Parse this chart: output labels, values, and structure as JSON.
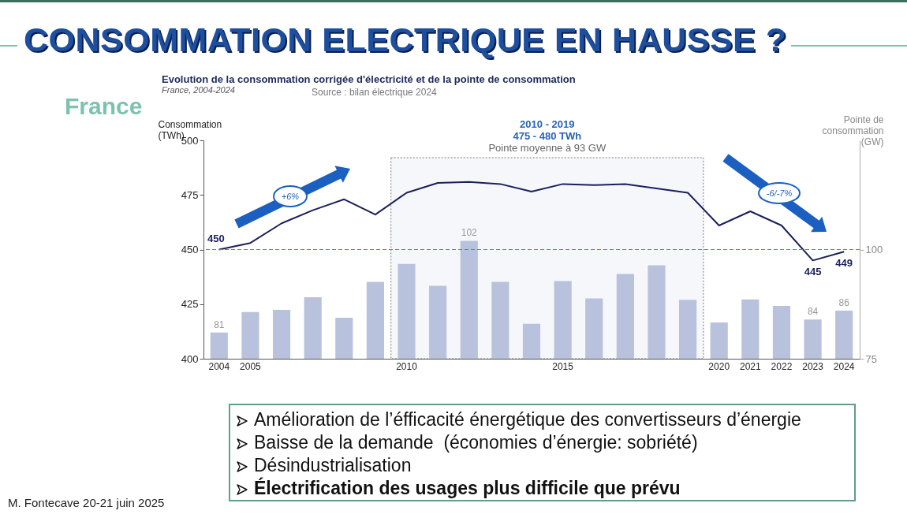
{
  "chart_data": {
    "type": "bar",
    "title": "Evolution de la consommation corrigée d'électricité et de la pointe de consommation",
    "subtitle": "France, 2004-2024",
    "ylabel": "Consommation\n(TWh)",
    "y2label": "Pointe de\nconsommation\n(GW)",
    "categories": [
      "2004",
      "2005",
      null,
      null,
      null,
      null,
      "2010",
      null,
      null,
      null,
      null,
      "2015",
      null,
      null,
      null,
      null,
      "2020",
      "2021",
      "2022",
      "2023",
      "2024"
    ],
    "series": [
      {
        "axis": "y2",
        "color": "#b9c2dc",
        "values": [
          81,
          85.7,
          86.2,
          89.1,
          84.4,
          92.6,
          96.7,
          91.7,
          102,
          92.6,
          83,
          92.8,
          88.8,
          94.4,
          96.4,
          88.5,
          83.3,
          88.6,
          87.1,
          84,
          86
        ],
        "value_labels": [
          "81",
          null,
          null,
          null,
          null,
          null,
          null,
          null,
          "102",
          null,
          null,
          null,
          null,
          null,
          null,
          null,
          null,
          null,
          null,
          "84",
          "86"
        ]
      },
      {
        "type": "line",
        "color": "#1b1f5c",
        "values": [
          450,
          453,
          462,
          468,
          473,
          466,
          476,
          480.5,
          481,
          480,
          476.5,
          480,
          479.5,
          480,
          478,
          476,
          461,
          467.5,
          461,
          445,
          449
        ],
        "value_labels": [
          "450",
          null,
          null,
          null,
          null,
          null,
          null,
          null,
          null,
          null,
          null,
          null,
          null,
          null,
          null,
          null,
          null,
          null,
          null,
          "445",
          "449"
        ]
      }
    ],
    "ylim": [
      400,
      500
    ],
    "yticks": [
      400,
      425,
      450,
      475,
      500
    ],
    "y2lim": [
      75,
      125
    ],
    "y2ticks": [
      75,
      100
    ],
    "ref_lines": [
      {
        "axis": "y",
        "value": 450,
        "color": "#5b7fc4",
        "line_style": "dashed"
      }
    ],
    "bands": [
      {
        "axis": "x",
        "from": "2010",
        "to": "2020",
        "label": "Pointe moyenne à 93 GW",
        "color": "#f6f7fb"
      }
    ],
    "grid": false,
    "annotations": [
      "CONSOMMATION ELECTRIQUE EN HAUSSE ?",
      "France",
      "Source : bilan électrique 2024",
      "2010 - 2019",
      "475 - 480 TWh",
      "+6%",
      "-6/-7%",
      "Amélioration de l’éfficacité énergétique des convertisseurs d’énergie",
      "Baisse de la demande  (économies d’énergie: sobriété)",
      "Désindustrialisation",
      "Électrification des usages plus difficile que prévu",
      "M. Fontecave 20-21 juin 2025"
    ]
  }
}
